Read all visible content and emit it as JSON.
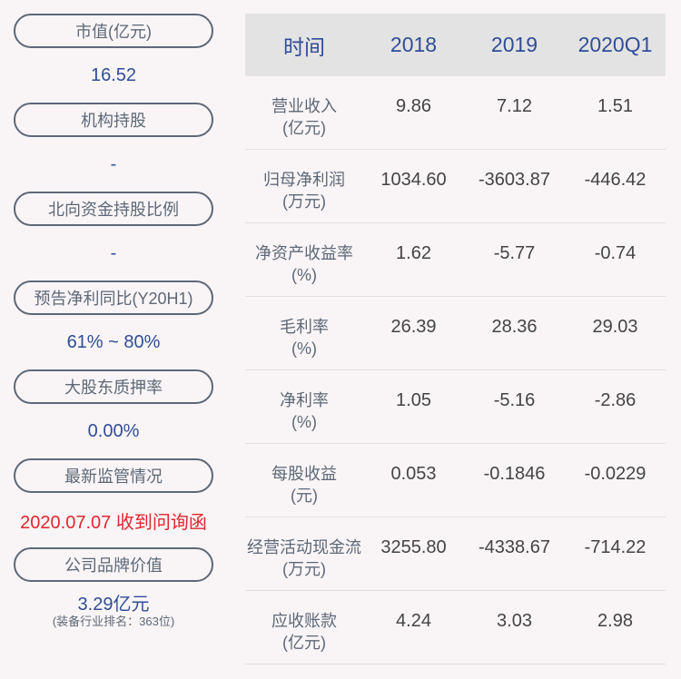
{
  "left_metrics": [
    {
      "label": "市值(亿元)",
      "value": "16.52"
    },
    {
      "label": "机构持股",
      "value": "-"
    },
    {
      "label": "北向资金持股比例",
      "value": "-"
    },
    {
      "label": "预告净利同比(Y20H1)",
      "value": "61% ~ 80%"
    },
    {
      "label": "大股东质押率",
      "value": "0.00%"
    },
    {
      "label": "最新监管情况",
      "value": "2020.07.07 收到问询函"
    },
    {
      "label": "公司品牌价值",
      "value": "3.29亿元",
      "sub": "(装备行业排名：363位)"
    }
  ],
  "colors": {
    "accent_blue": "#2f4d98",
    "alert_red": "#e0262d",
    "pill_border": "#5d6877",
    "header_bg": "#e4e3e3",
    "page_bg": "#f9f5f6"
  },
  "table": {
    "headers": [
      "时间",
      "2018",
      "2019",
      "2020Q1"
    ],
    "rows": [
      {
        "label": "营业收入",
        "unit": "(亿元)",
        "values": [
          "9.86",
          "7.12",
          "1.51"
        ]
      },
      {
        "label": "归母净利润",
        "unit": "(万元)",
        "values": [
          "1034.60",
          "-3603.87",
          "-446.42"
        ]
      },
      {
        "label": "净资产收益率",
        "unit": "(%)",
        "values": [
          "1.62",
          "-5.77",
          "-0.74"
        ]
      },
      {
        "label": "毛利率",
        "unit": "(%)",
        "values": [
          "26.39",
          "28.36",
          "29.03"
        ]
      },
      {
        "label": "净利率",
        "unit": "(%)",
        "values": [
          "1.05",
          "-5.16",
          "-2.86"
        ]
      },
      {
        "label": "每股收益",
        "unit": "(元)",
        "values": [
          "0.053",
          "-0.1846",
          "-0.0229"
        ]
      },
      {
        "label": "经营活动现金流",
        "unit": "(万元)",
        "values": [
          "3255.80",
          "-4338.67",
          "-714.22"
        ]
      },
      {
        "label": "应收账款",
        "unit": "(亿元)",
        "values": [
          "4.24",
          "3.03",
          "2.98"
        ]
      }
    ]
  }
}
